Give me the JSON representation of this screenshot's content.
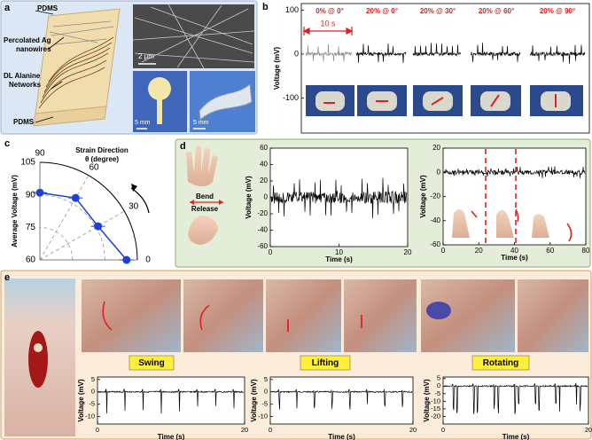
{
  "figure": {
    "panel_labels": [
      "a",
      "b",
      "c",
      "d",
      "e"
    ],
    "a": {
      "layers": [
        [
          "PDMS"
        ],
        [
          "Percolated Ag",
          "nanowires"
        ],
        [
          "DL Alanine",
          "Networks"
        ],
        [
          "PDMS"
        ]
      ],
      "scale_bars": [
        "2 μm",
        "5 mm",
        "5 mm"
      ]
    },
    "b": {
      "ylabel": "Voltage (mV)",
      "ylim": [
        -180,
        115
      ],
      "yticks": [
        100,
        0,
        -100
      ],
      "conditions": [
        "0% @ 0°",
        "20% @ 0°",
        "20% @ 30°",
        "20% @ 60°",
        "20% @ 90°"
      ],
      "time_bar": "10 s"
    },
    "c": {
      "type": "polar",
      "title_lines": [
        "Strain Direction",
        "θ (degree)"
      ],
      "rlabel": "Average Voltage (mV)",
      "rlim": [
        60,
        105
      ],
      "rticks": [
        60,
        75,
        90,
        105
      ],
      "theta_ticks": [
        0,
        30,
        60,
        90
      ],
      "theta": [
        90,
        60,
        30,
        0
      ],
      "values": [
        91,
        93,
        91,
        100
      ],
      "color": "#1f3fd8"
    },
    "d": {
      "gestures": [
        "Bend",
        "Release"
      ],
      "charts": [
        {
          "xlabel": "Time (s)",
          "ylabel": "Voltage (mV)",
          "xlim": [
            0,
            20
          ],
          "xticks": [
            0,
            10,
            20
          ],
          "ylim": [
            -60,
            60
          ],
          "yticks": [
            -60,
            -40,
            -20,
            0,
            20,
            40,
            60
          ]
        },
        {
          "xlabel": "Time (s)",
          "ylabel": "Voltage (mV)",
          "xlim": [
            0,
            80
          ],
          "xticks": [
            0,
            20,
            40,
            60,
            80
          ],
          "ylim": [
            -60,
            20
          ],
          "yticks": [
            -60,
            -40,
            -20,
            0,
            20
          ]
        }
      ]
    },
    "e": {
      "motions": [
        "Swing",
        "Lifting",
        "Rotating"
      ],
      "charts": [
        {
          "xlabel": "Time (s)",
          "ylabel": "Voltage (mV)",
          "xlim": [
            0,
            20
          ],
          "xticks": [
            0,
            20
          ],
          "ylim": [
            -13,
            6
          ],
          "yticks": [
            -10,
            -5,
            0,
            5
          ]
        },
        {
          "xlabel": "Time (s)",
          "ylabel": "Voltage (mV)",
          "xlim": [
            0,
            20
          ],
          "xticks": [
            0,
            20
          ],
          "ylim": [
            -13,
            6
          ],
          "yticks": [
            -10,
            -5,
            0,
            5
          ]
        },
        {
          "xlabel": "Time (s)",
          "ylabel": "Voltage (mV)",
          "xlim": [
            0,
            20
          ],
          "xticks": [
            0,
            20
          ],
          "ylim": [
            -25,
            6
          ],
          "yticks": [
            -20,
            -15,
            -10,
            -5,
            0,
            5
          ]
        }
      ]
    }
  }
}
